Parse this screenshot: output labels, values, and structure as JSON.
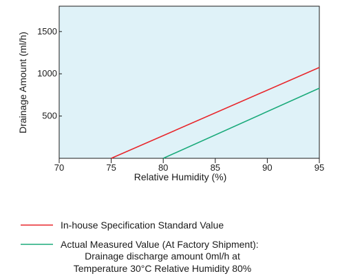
{
  "chart_data": {
    "type": "line",
    "xlabel": "Relative Humidity (%)",
    "ylabel": "Drainage Amount (ml/h)",
    "xlim": [
      70,
      95
    ],
    "ylim": [
      0,
      1800
    ],
    "x_ticks": [
      70,
      75,
      80,
      85,
      90,
      95
    ],
    "y_ticks": [
      500,
      1000,
      1500
    ],
    "x_tick_labels": [
      "70",
      "75",
      "80",
      "85",
      "90",
      "95"
    ],
    "y_tick_labels": [
      "500",
      "1000",
      "1500"
    ],
    "plot_background": "#dff2f8",
    "grid": false,
    "legend_position": "bottom",
    "series": [
      {
        "name": "In-house Specification Standard Value",
        "color": "#e8262b",
        "x": [
          75,
          95
        ],
        "y": [
          0,
          1075
        ]
      },
      {
        "name": "Actual Measured Value (At Factory Shipment):",
        "color": "#1aaa7a",
        "x": [
          80,
          95
        ],
        "y": [
          0,
          830
        ]
      }
    ],
    "annotations": [
      "Drainage discharge amount 0ml/h at",
      "Temperature 30°C Relative Humidity 80%"
    ]
  }
}
